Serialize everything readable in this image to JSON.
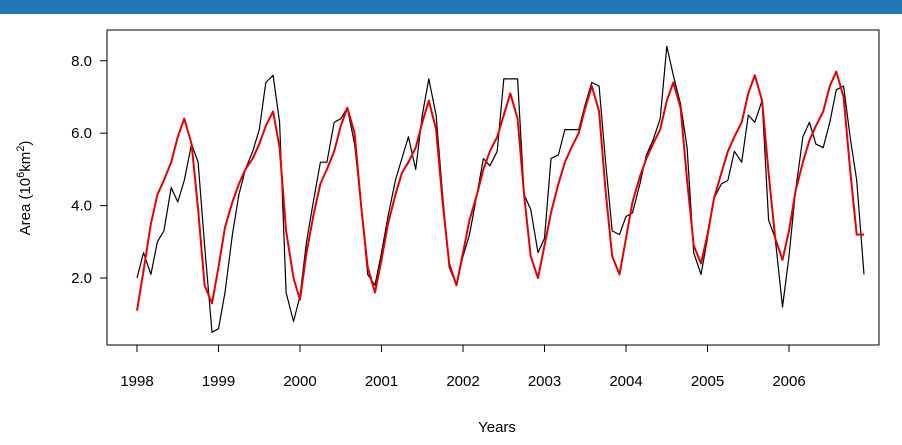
{
  "colors": {
    "header_bar": "#1f77b4",
    "observed": "#000000",
    "fitted": "#e60000"
  },
  "chart_data": {
    "type": "line",
    "title": "",
    "xlabel": "Years",
    "ylabel": "Area  (10",
    "ylabel_sup": "6",
    "ylabel_tail": "km",
    "ylabel_sup2": "2",
    "ylabel_end": ")",
    "xlim": [
      1998,
      2007
    ],
    "ylim": [
      0.0,
      9.0
    ],
    "grid": false,
    "legend": "none",
    "x_ticks": [
      1998,
      1999,
      2000,
      2001,
      2002,
      2003,
      2004,
      2005,
      2006
    ],
    "x_tick_labels": [
      "1998",
      "1999",
      "2000",
      "2001",
      "2002",
      "2003",
      "2004",
      "2005",
      "2006"
    ],
    "y_ticks": [
      2.0,
      4.0,
      6.0,
      8.0
    ],
    "y_tick_labels": [
      "2.0",
      "4.0",
      "6.0",
      "8.0"
    ],
    "series": [
      {
        "color": "#000000",
        "x": [
          1998.0,
          1998.08,
          1998.17,
          1998.25,
          1998.33,
          1998.42,
          1998.5,
          1998.58,
          1998.67,
          1998.75,
          1998.83,
          1998.92,
          1999.0,
          1999.08,
          1999.17,
          1999.25,
          1999.33,
          1999.42,
          1999.5,
          1999.58,
          1999.67,
          1999.75,
          1999.83,
          1999.92,
          2000.0,
          2000.08,
          2000.17,
          2000.25,
          2000.33,
          2000.42,
          2000.5,
          2000.58,
          2000.67,
          2000.75,
          2000.83,
          2000.92,
          2001.0,
          2001.08,
          2001.17,
          2001.25,
          2001.33,
          2001.42,
          2001.5,
          2001.58,
          2001.67,
          2001.75,
          2001.83,
          2001.92,
          2002.0,
          2002.08,
          2002.17,
          2002.25,
          2002.33,
          2002.42,
          2002.5,
          2002.58,
          2002.67,
          2002.75,
          2002.83,
          2002.92,
          2003.0,
          2003.08,
          2003.17,
          2003.25,
          2003.33,
          2003.42,
          2003.5,
          2003.58,
          2003.67,
          2003.75,
          2003.83,
          2003.92,
          2004.0,
          2004.08,
          2004.17,
          2004.25,
          2004.33,
          2004.42,
          2004.5,
          2004.58,
          2004.67,
          2004.75,
          2004.83,
          2004.92,
          2005.0,
          2005.08,
          2005.17,
          2005.25,
          2005.33,
          2005.42,
          2005.5,
          2005.58,
          2005.67,
          2005.75,
          2005.83,
          2005.92,
          2006.0,
          2006.08,
          2006.17,
          2006.25,
          2006.33,
          2006.42,
          2006.5,
          2006.58,
          2006.67,
          2006.75,
          2006.83,
          2006.92
        ],
        "values": [
          2.0,
          2.7,
          2.1,
          3.0,
          3.3,
          4.5,
          4.1,
          4.7,
          5.7,
          5.2,
          2.9,
          0.5,
          0.6,
          1.6,
          3.2,
          4.3,
          5.0,
          5.5,
          6.1,
          7.4,
          7.6,
          6.3,
          1.6,
          0.8,
          1.5,
          3.0,
          4.2,
          5.2,
          5.2,
          6.3,
          6.4,
          6.7,
          5.7,
          4.0,
          2.1,
          1.8,
          2.7,
          3.7,
          4.7,
          5.3,
          5.9,
          5.0,
          6.5,
          7.5,
          6.5,
          4.3,
          2.3,
          1.8,
          2.6,
          3.2,
          4.3,
          5.3,
          5.1,
          5.5,
          7.5,
          7.5,
          7.5,
          4.3,
          3.9,
          2.7,
          3.1,
          5.3,
          5.4,
          6.1,
          6.1,
          6.1,
          6.8,
          7.4,
          7.3,
          5.2,
          3.3,
          3.2,
          3.7,
          3.8,
          4.6,
          5.4,
          5.8,
          6.4,
          8.4,
          7.6,
          6.8,
          5.6,
          2.7,
          2.1,
          3.1,
          4.2,
          4.6,
          4.7,
          5.5,
          5.2,
          6.5,
          6.3,
          6.9,
          3.6,
          3.1,
          1.2,
          2.6,
          4.4,
          5.9,
          6.3,
          5.7,
          5.6,
          6.3,
          7.2,
          7.3,
          5.9,
          4.7,
          2.1
        ]
      },
      {
        "color": "#e60000",
        "x": [
          1998.0,
          1998.08,
          1998.17,
          1998.25,
          1998.33,
          1998.42,
          1998.5,
          1998.58,
          1998.67,
          1998.75,
          1998.83,
          1998.92,
          1999.0,
          1999.08,
          1999.17,
          1999.25,
          1999.33,
          1999.42,
          1999.5,
          1999.58,
          1999.67,
          1999.75,
          1999.83,
          1999.92,
          2000.0,
          2000.08,
          2000.17,
          2000.25,
          2000.33,
          2000.42,
          2000.5,
          2000.58,
          2000.67,
          2000.75,
          2000.83,
          2000.92,
          2001.0,
          2001.08,
          2001.17,
          2001.25,
          2001.33,
          2001.42,
          2001.5,
          2001.58,
          2001.67,
          2001.75,
          2001.83,
          2001.92,
          2002.0,
          2002.08,
          2002.17,
          2002.25,
          2002.33,
          2002.42,
          2002.5,
          2002.58,
          2002.67,
          2002.75,
          2002.83,
          2002.92,
          2003.0,
          2003.08,
          2003.17,
          2003.25,
          2003.33,
          2003.42,
          2003.5,
          2003.58,
          2003.67,
          2003.75,
          2003.83,
          2003.92,
          2004.0,
          2004.08,
          2004.17,
          2004.25,
          2004.33,
          2004.42,
          2004.5,
          2004.58,
          2004.67,
          2004.75,
          2004.83,
          2004.92,
          2005.0,
          2005.08,
          2005.17,
          2005.25,
          2005.33,
          2005.42,
          2005.5,
          2005.58,
          2005.67,
          2005.75,
          2005.83,
          2005.92,
          2006.0,
          2006.08,
          2006.17,
          2006.25,
          2006.33,
          2006.42,
          2006.5,
          2006.58,
          2006.67,
          2006.75,
          2006.83,
          2006.92
        ],
        "values": [
          1.1,
          2.2,
          3.5,
          4.3,
          4.7,
          5.2,
          5.9,
          6.4,
          5.7,
          3.9,
          1.8,
          1.3,
          2.3,
          3.4,
          4.1,
          4.6,
          5.0,
          5.3,
          5.7,
          6.2,
          6.6,
          5.6,
          3.3,
          2.0,
          1.4,
          2.7,
          3.8,
          4.6,
          5.0,
          5.5,
          6.2,
          6.7,
          6.0,
          4.0,
          2.3,
          1.6,
          2.5,
          3.5,
          4.3,
          4.9,
          5.2,
          5.6,
          6.3,
          6.9,
          6.1,
          4.1,
          2.4,
          1.8,
          2.7,
          3.6,
          4.3,
          5.0,
          5.5,
          5.9,
          6.5,
          7.1,
          6.4,
          4.3,
          2.6,
          2.0,
          2.9,
          3.8,
          4.6,
          5.2,
          5.6,
          6.0,
          6.7,
          7.3,
          6.6,
          4.4,
          2.6,
          2.1,
          3.1,
          4.1,
          4.8,
          5.3,
          5.7,
          6.1,
          6.9,
          7.4,
          6.7,
          4.7,
          2.9,
          2.4,
          3.2,
          4.2,
          4.9,
          5.5,
          5.9,
          6.3,
          7.1,
          7.6,
          6.9,
          4.9,
          3.1,
          2.5,
          3.3,
          4.4,
          5.2,
          5.8,
          6.2,
          6.6,
          7.3,
          7.7,
          7.0,
          5.0,
          3.2,
          3.2
        ]
      }
    ]
  }
}
